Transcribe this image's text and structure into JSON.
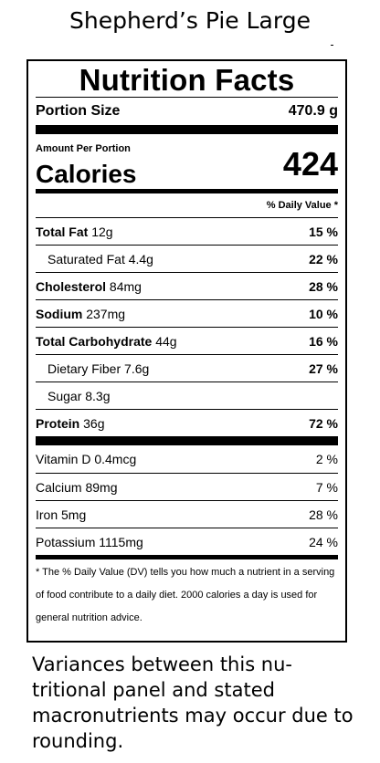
{
  "header": {
    "title": "Shepherd’s Pie Large"
  },
  "label": {
    "title": "Nutrition Facts",
    "portion_label": "Portion Size",
    "portion_value": "470.9 g",
    "amount_per_portion": "Amount Per Portion",
    "calories_label": "Calories",
    "calories_value": "424",
    "dv_header": "% Daily Value *",
    "nutrients": [
      {
        "name": "Total Fat",
        "amount": "12g",
        "pct": "15 %"
      },
      {
        "name": "Saturated Fat",
        "amount": "4.4g",
        "pct": "22 %"
      },
      {
        "name": "Cholesterol",
        "amount": "84mg",
        "pct": "28 %"
      },
      {
        "name": "Sodium",
        "amount": "237mg",
        "pct": "10 %"
      },
      {
        "name": "Total Carbohydrate",
        "amount": "44g",
        "pct": "16 %"
      },
      {
        "name": "Dietary Fiber",
        "amount": "7.6g",
        "pct": "27 %"
      },
      {
        "name": "Sugar",
        "amount": "8.3g",
        "pct": ""
      },
      {
        "name": "Protein",
        "amount": "36g",
        "pct": "72 %"
      }
    ],
    "vitamins": [
      {
        "name": "Vitamin D",
        "amount": "0.4mcg",
        "pct": "2 %"
      },
      {
        "name": "Calcium",
        "amount": "89mg",
        "pct": "7 %"
      },
      {
        "name": "Iron",
        "amount": "5mg",
        "pct": "28 %"
      },
      {
        "name": "Potassium",
        "amount": "1115mg",
        "pct": "24 %"
      }
    ],
    "footnote": "* The % Daily Value (DV) tells you how much a nutrient in a serving of food contribute to a daily diet. 2000 calories a day is used for general nutrition advice."
  },
  "disclaimer": "Variances between this nu-tritional panel and stated macronutrients may occur due to rounding."
}
